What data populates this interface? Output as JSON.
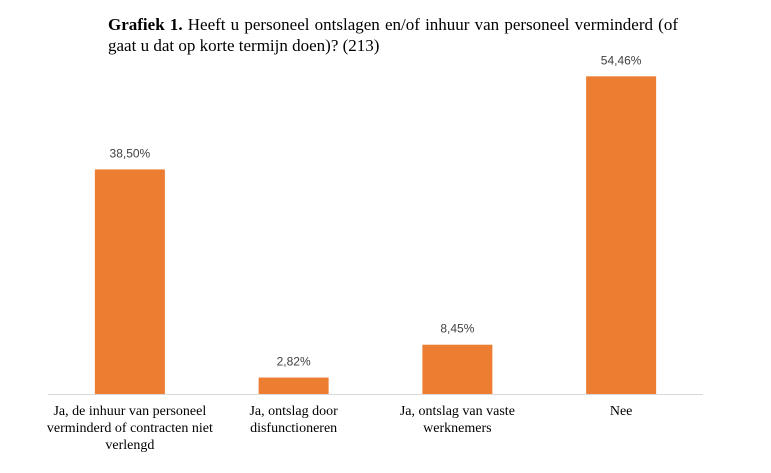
{
  "title": {
    "prefix": "Grafiek 1.",
    "text": " Heeft u personeel ontslagen en/of inhuur van personeel verminderd (of gaat u dat op korte termijn doen)? (213)"
  },
  "chart_data": {
    "type": "bar",
    "categories": [
      "Ja, de inhuur van personeel verminderd of contracten niet verlengd",
      "Ja, ontslag door disfunctioneren",
      "Ja, ontslag van vaste werknemers",
      "Nee"
    ],
    "values": [
      38.5,
      2.82,
      8.45,
      54.46
    ],
    "data_labels": [
      "38,50%",
      "2,82%",
      "8,45%",
      "54,46%"
    ],
    "ylim": [
      0,
      60
    ],
    "grid": false,
    "legend": "none",
    "colors": {
      "bar": "#ED7D31",
      "axis": "#D9D9D9",
      "label": "#404040"
    }
  }
}
